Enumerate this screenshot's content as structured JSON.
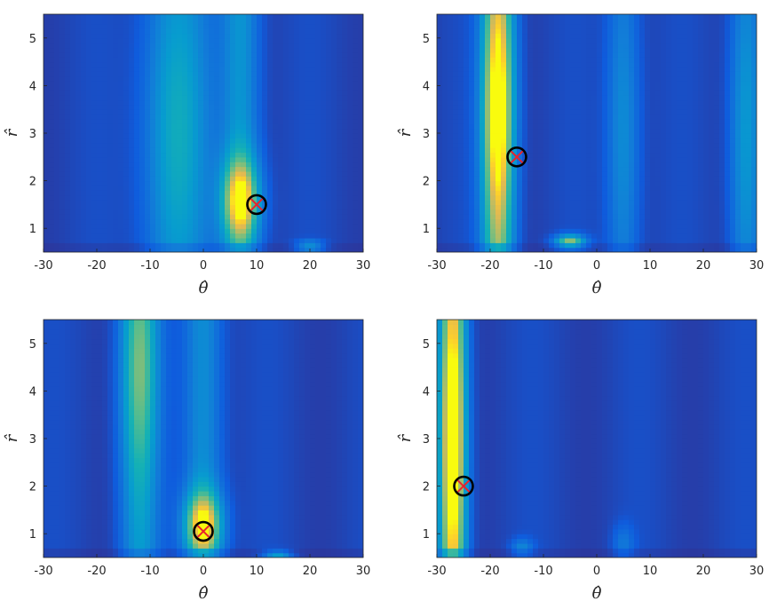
{
  "colors": {
    "colormap": "parula",
    "marker_circle": "#000000",
    "marker_cross": "#e8232d",
    "axis": "#262626"
  },
  "chart_data": [
    {
      "type": "heatmap",
      "xlabel": "θ̂",
      "ylabel": "r̂",
      "xlim": [
        -30,
        30
      ],
      "ylim": [
        0.5,
        5.5
      ],
      "xticks": [
        -30,
        -20,
        -10,
        0,
        10,
        20,
        30
      ],
      "yticks": [
        1,
        2,
        3,
        4,
        5
      ],
      "marker": {
        "theta": 10,
        "r": 1.5
      },
      "field": [
        {
          "theta": 7,
          "r_from": 0.5,
          "r_to": 5.5,
          "theta_width": 3.5,
          "peak_r": 1.6,
          "peak_width": 0.9,
          "amp": 0.95,
          "base": 0.42
        },
        {
          "theta": 20,
          "r_from": 0.5,
          "r_to": 0.9,
          "theta_width": 2.5,
          "peak_r": 0.62,
          "peak_width": 0.12,
          "amp": 0.45,
          "base": 0.0
        },
        {
          "theta": -5,
          "r_from": 0.5,
          "r_to": 5.5,
          "theta_width": 6,
          "peak_r": 3.0,
          "peak_width": 3.0,
          "amp": 0.28,
          "base": 0.28
        }
      ]
    },
    {
      "type": "heatmap",
      "xlabel": "θ̂",
      "ylabel": "r̂",
      "xlim": [
        -30,
        30
      ],
      "ylim": [
        0.5,
        5.5
      ],
      "xticks": [
        -30,
        -20,
        -10,
        0,
        10,
        20,
        30
      ],
      "yticks": [
        1,
        2,
        3,
        4,
        5
      ],
      "marker": {
        "theta": -15,
        "r": 2.5
      },
      "field": [
        {
          "theta": -18.5,
          "r_from": 0.5,
          "r_to": 5.5,
          "theta_width": 3.0,
          "peak_r": 3.5,
          "peak_width": 2.5,
          "amp": 0.85,
          "base": 0.72
        },
        {
          "theta": -5,
          "r_from": 0.5,
          "r_to": 1.0,
          "theta_width": 2.8,
          "peak_r": 0.72,
          "peak_width": 0.15,
          "amp": 0.7,
          "base": 0.0
        },
        {
          "theta": 5,
          "r_from": 0.5,
          "r_to": 5.5,
          "theta_width": 3.0,
          "peak_r": 3.0,
          "peak_width": 3.0,
          "amp": 0.18,
          "base": 0.18
        },
        {
          "theta": 28,
          "r_from": 0.5,
          "r_to": 5.5,
          "theta_width": 3.0,
          "peak_r": 3.0,
          "peak_width": 3.0,
          "amp": 0.22,
          "base": 0.22
        }
      ]
    },
    {
      "type": "heatmap",
      "xlabel": "θ̂",
      "ylabel": "r̂",
      "xlim": [
        -30,
        30
      ],
      "ylim": [
        0.5,
        5.5
      ],
      "xticks": [
        -30,
        -20,
        -10,
        0,
        10,
        20,
        30
      ],
      "yticks": [
        1,
        2,
        3,
        4,
        5
      ],
      "marker": {
        "theta": 0,
        "r": 1.05
      },
      "field": [
        {
          "theta": 0,
          "r_from": 0.5,
          "r_to": 5.5,
          "theta_width": 3.5,
          "peak_r": 1.2,
          "peak_width": 0.7,
          "amp": 0.95,
          "base": 0.38
        },
        {
          "theta": -12,
          "r_from": 0.5,
          "r_to": 5.5,
          "theta_width": 3.5,
          "peak_r": 4.5,
          "peak_width": 2.5,
          "amp": 0.45,
          "base": 0.4
        },
        {
          "theta": 14,
          "r_from": 0.5,
          "r_to": 0.8,
          "theta_width": 2.5,
          "peak_r": 0.55,
          "peak_width": 0.1,
          "amp": 0.55,
          "base": 0.0
        }
      ]
    },
    {
      "type": "heatmap",
      "xlabel": "θ̂",
      "ylabel": "r̂",
      "xlim": [
        -30,
        30
      ],
      "ylim": [
        0.5,
        5.5
      ],
      "xticks": [
        -30,
        -20,
        -10,
        0,
        10,
        20,
        30
      ],
      "yticks": [
        1,
        2,
        3,
        4,
        5
      ],
      "marker": {
        "theta": -25,
        "r": 2.0
      },
      "field": [
        {
          "theta": -27,
          "r_from": 0.5,
          "r_to": 5.5,
          "theta_width": 2.5,
          "peak_r": 3.0,
          "peak_width": 3.0,
          "amp": 0.82,
          "base": 0.8
        },
        {
          "theta": -14,
          "r_from": 0.5,
          "r_to": 1.1,
          "theta_width": 2.0,
          "peak_r": 0.7,
          "peak_width": 0.2,
          "amp": 0.25,
          "base": 0.0
        },
        {
          "theta": 5,
          "r_from": 0.5,
          "r_to": 1.5,
          "theta_width": 2.0,
          "peak_r": 0.8,
          "peak_width": 0.4,
          "amp": 0.18,
          "base": 0.0
        }
      ]
    }
  ]
}
